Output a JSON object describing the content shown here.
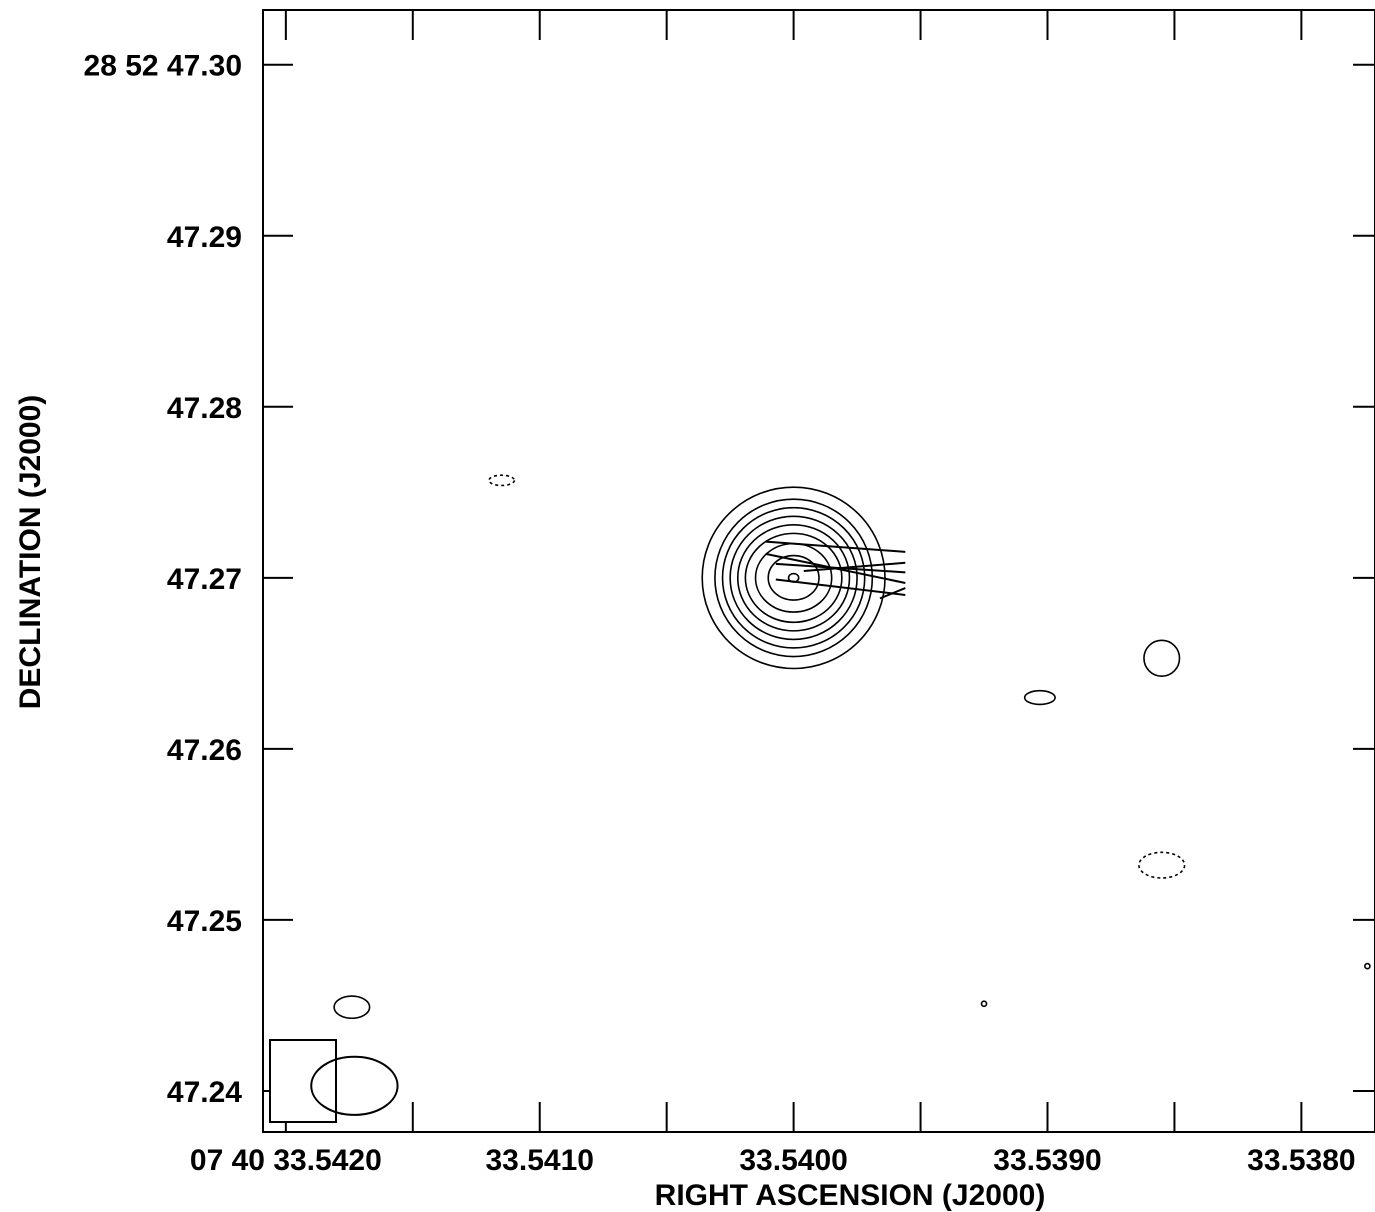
{
  "chart_data": {
    "type": "contour",
    "xlabel": "RIGHT ASCENSION (J2000)",
    "ylabel": "DECLINATION (J2000)",
    "x_ticks": [
      {
        "value": 33.542,
        "label": "07 40 33.5420"
      },
      {
        "value": 33.541,
        "label": "33.5410"
      },
      {
        "value": 33.54,
        "label": "33.5400"
      },
      {
        "value": 33.539,
        "label": "33.5390"
      },
      {
        "value": 33.538,
        "label": "33.5380"
      }
    ],
    "x_minor_ticks": [
      33.5415,
      33.5405,
      33.5395,
      33.5385
    ],
    "y_ticks": [
      {
        "value": 47.3,
        "label": "28 52 47.30"
      },
      {
        "value": 47.29,
        "label": "47.29"
      },
      {
        "value": 47.28,
        "label": "47.28"
      },
      {
        "value": 47.27,
        "label": "47.27"
      },
      {
        "value": 47.26,
        "label": "47.26"
      },
      {
        "value": 47.25,
        "label": "47.25"
      },
      {
        "value": 47.24,
        "label": "47.24"
      }
    ],
    "xlim": [
      33.54209,
      33.53771
    ],
    "ylim": [
      47.2376,
      47.3032
    ],
    "grid": false,
    "main_source": {
      "ra": 33.54,
      "dec": 47.27,
      "contours": [
        {
          "rx": 2e-05,
          "ry": 0.00025
        },
        {
          "rx": 0.0001,
          "ry": 0.0013
        },
        {
          "rx": 0.00015,
          "ry": 0.002
        },
        {
          "rx": 0.00019,
          "ry": 0.0026
        },
        {
          "rx": 0.00022,
          "ry": 0.0031
        },
        {
          "rx": 0.00025,
          "ry": 0.0036
        },
        {
          "rx": 0.00028,
          "ry": 0.0041
        },
        {
          "rx": 0.00031,
          "ry": 0.0046
        },
        {
          "rx": 0.00036,
          "ry": 0.0053
        }
      ]
    },
    "polarization_vectors": [
      {
        "x1": 33.54011,
        "y1": 47.27212,
        "x2": 33.53956,
        "y2": 47.27152
      },
      {
        "x1": 33.54007,
        "y1": 47.27082,
        "x2": 33.53956,
        "y2": 47.27032
      },
      {
        "x1": 33.54011,
        "y1": 47.2714,
        "x2": 33.53956,
        "y2": 47.2697
      },
      {
        "x1": 33.53996,
        "y1": 47.2704,
        "x2": 33.53956,
        "y2": 47.27088
      },
      {
        "x1": 33.54007,
        "y1": 47.2699,
        "x2": 33.53956,
        "y2": 47.269
      },
      {
        "x1": 33.53966,
        "y1": 47.2688,
        "x2": 33.53956,
        "y2": 47.2694
      }
    ],
    "minor_contours": [
      {
        "ra": 33.53903,
        "dec": 47.263,
        "rx": 6e-05,
        "ry": 0.0004,
        "dashed": false
      },
      {
        "ra": 33.53855,
        "dec": 47.2653,
        "rx": 7e-05,
        "ry": 0.00105,
        "dashed": false
      },
      {
        "ra": 33.53855,
        "dec": 47.2532,
        "rx": 9e-05,
        "ry": 0.00075,
        "dashed": true
      },
      {
        "ra": 33.54174,
        "dec": 47.2449,
        "rx": 7e-05,
        "ry": 0.00065,
        "dashed": false
      },
      {
        "ra": 33.54115,
        "dec": 47.2757,
        "rx": 5e-05,
        "ry": 0.0003,
        "dashed": true
      },
      {
        "ra": 33.53925,
        "dec": 47.2451,
        "rx": 1e-05,
        "ry": 0.00015,
        "dashed": false
      },
      {
        "ra": 33.53774,
        "dec": 47.2473,
        "rx": 1e-05,
        "ry": 0.00015,
        "dashed": false
      }
    ],
    "beam": {
      "ra": 33.54173,
      "dec": 47.2403,
      "rx": 0.00017,
      "ry": 0.0017
    }
  }
}
